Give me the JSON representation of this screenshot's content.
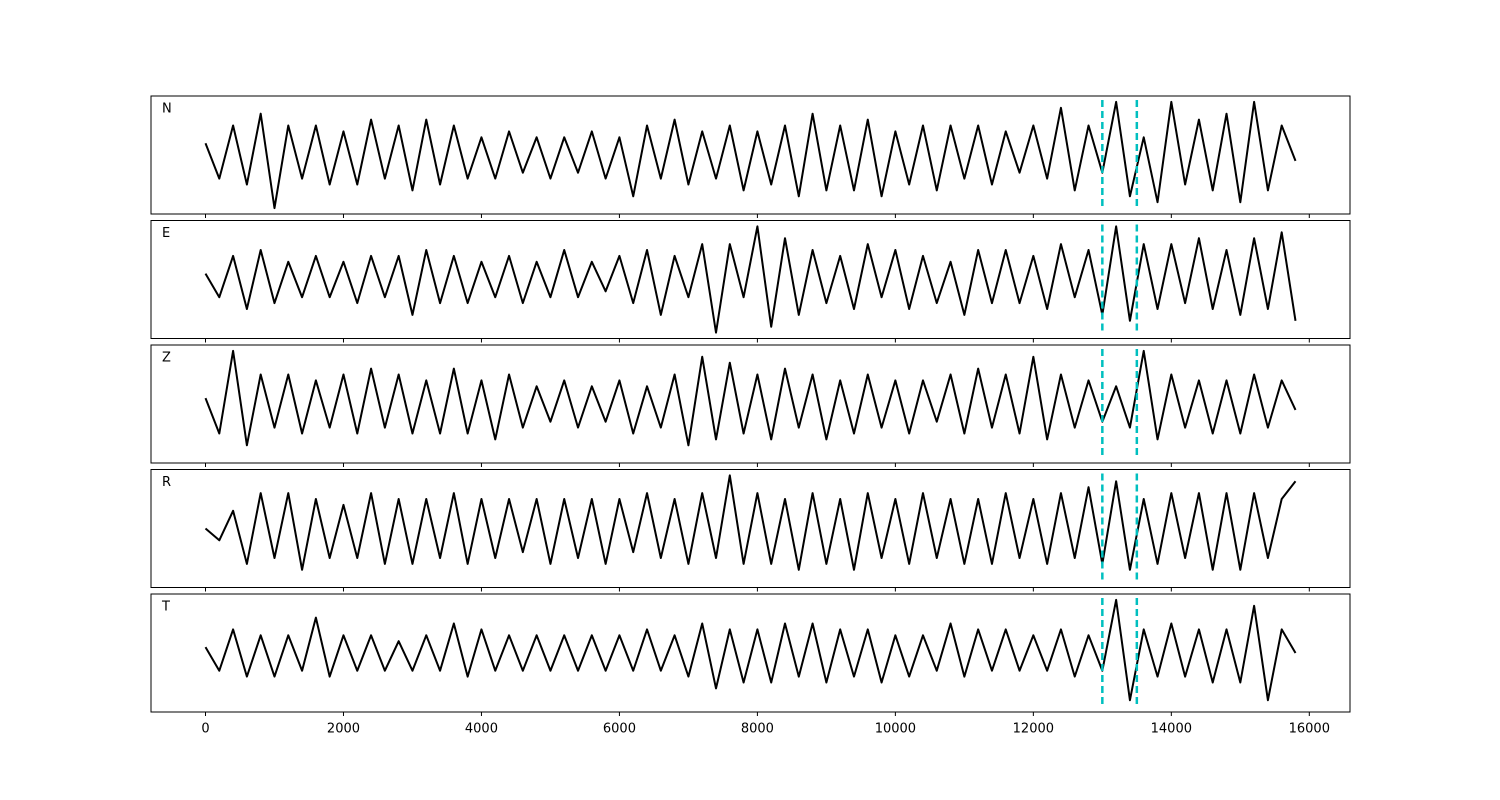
{
  "chart_data": [
    {
      "type": "line",
      "label": "N",
      "xlim": [
        -790,
        16590
      ],
      "ylim": [
        -1,
        1
      ],
      "xticks": [
        0,
        2000,
        4000,
        6000,
        8000,
        10000,
        12000,
        14000,
        16000
      ],
      "show_xticklabels": false,
      "vlines": [
        13000,
        13500
      ],
      "vline_color": "#00bfbf",
      "x": [
        0,
        200,
        400,
        600,
        800,
        1000,
        1200,
        1400,
        1600,
        1800,
        2000,
        2200,
        2400,
        2600,
        2800,
        3000,
        3200,
        3400,
        3600,
        3800,
        4000,
        4200,
        4400,
        4600,
        4800,
        5000,
        5200,
        5400,
        5600,
        5800,
        6000,
        6200,
        6400,
        6600,
        6800,
        7000,
        7200,
        7400,
        7600,
        7800,
        8000,
        8200,
        8400,
        8600,
        8800,
        9000,
        9200,
        9400,
        9600,
        9800,
        10000,
        10200,
        10400,
        10600,
        10800,
        11000,
        11200,
        11400,
        11600,
        11800,
        12000,
        12200,
        12400,
        12600,
        12800,
        13000,
        13200,
        13400,
        13600,
        13800,
        14000,
        14200,
        14400,
        14600,
        14800,
        15000,
        15200,
        15400,
        15600,
        15800
      ],
      "series": [
        {
          "color": "#000000",
          "values": [
            0.2,
            -0.4,
            0.5,
            -0.5,
            0.7,
            -0.9,
            0.5,
            -0.4,
            0.5,
            -0.5,
            0.4,
            -0.5,
            0.6,
            -0.4,
            0.5,
            -0.6,
            0.6,
            -0.5,
            0.5,
            -0.4,
            0.3,
            -0.4,
            0.4,
            -0.3,
            0.3,
            -0.4,
            0.3,
            -0.3,
            0.4,
            -0.4,
            0.3,
            -0.7,
            0.5,
            -0.4,
            0.6,
            -0.5,
            0.4,
            -0.4,
            0.5,
            -0.6,
            0.4,
            -0.5,
            0.5,
            -0.7,
            0.7,
            -0.6,
            0.5,
            -0.6,
            0.6,
            -0.7,
            0.4,
            -0.5,
            0.5,
            -0.6,
            0.5,
            -0.4,
            0.5,
            -0.5,
            0.4,
            -0.3,
            0.5,
            -0.4,
            0.8,
            -0.6,
            0.5,
            -0.3,
            0.9,
            -0.7,
            0.3,
            -0.8,
            0.9,
            -0.5,
            0.6,
            -0.6,
            0.7,
            -0.8,
            0.9,
            -0.6,
            0.5,
            -0.1
          ]
        }
      ]
    },
    {
      "type": "line",
      "label": "E",
      "xlim": [
        -790,
        16590
      ],
      "ylim": [
        -1,
        1
      ],
      "xticks": [
        0,
        2000,
        4000,
        6000,
        8000,
        10000,
        12000,
        14000,
        16000
      ],
      "show_xticklabels": false,
      "vlines": [
        13000,
        13500
      ],
      "vline_color": "#00bfbf",
      "x": [
        0,
        200,
        400,
        600,
        800,
        1000,
        1200,
        1400,
        1600,
        1800,
        2000,
        2200,
        2400,
        2600,
        2800,
        3000,
        3200,
        3400,
        3600,
        3800,
        4000,
        4200,
        4400,
        4600,
        4800,
        5000,
        5200,
        5400,
        5600,
        5800,
        6000,
        6200,
        6400,
        6600,
        6800,
        7000,
        7200,
        7400,
        7600,
        7800,
        8000,
        8200,
        8400,
        8600,
        8800,
        9000,
        9200,
        9400,
        9600,
        9800,
        10000,
        10200,
        10400,
        10600,
        10800,
        11000,
        11200,
        11400,
        11600,
        11800,
        12000,
        12200,
        12400,
        12600,
        12800,
        13000,
        13200,
        13400,
        13600,
        13800,
        14000,
        14200,
        14400,
        14600,
        14800,
        15000,
        15200,
        15400,
        15600,
        15800
      ],
      "series": [
        {
          "color": "#000000",
          "values": [
            0.1,
            -0.3,
            0.4,
            -0.5,
            0.5,
            -0.4,
            0.3,
            -0.3,
            0.4,
            -0.3,
            0.3,
            -0.4,
            0.4,
            -0.3,
            0.4,
            -0.6,
            0.5,
            -0.4,
            0.4,
            -0.4,
            0.3,
            -0.3,
            0.4,
            -0.4,
            0.3,
            -0.3,
            0.5,
            -0.3,
            0.3,
            -0.2,
            0.4,
            -0.4,
            0.5,
            -0.6,
            0.4,
            -0.3,
            0.6,
            -0.9,
            0.6,
            -0.3,
            0.9,
            -0.8,
            0.7,
            -0.6,
            0.5,
            -0.4,
            0.4,
            -0.5,
            0.6,
            -0.3,
            0.5,
            -0.5,
            0.4,
            -0.4,
            0.3,
            -0.6,
            0.5,
            -0.4,
            0.5,
            -0.4,
            0.4,
            -0.5,
            0.6,
            -0.3,
            0.5,
            -0.6,
            0.9,
            -0.7,
            0.6,
            -0.5,
            0.6,
            -0.4,
            0.7,
            -0.5,
            0.5,
            -0.6,
            0.7,
            -0.5,
            0.8,
            -0.7
          ]
        }
      ]
    },
    {
      "type": "line",
      "label": "Z",
      "xlim": [
        -790,
        16590
      ],
      "ylim": [
        -1,
        1
      ],
      "xticks": [
        0,
        2000,
        4000,
        6000,
        8000,
        10000,
        12000,
        14000,
        16000
      ],
      "show_xticklabels": false,
      "vlines": [
        13000,
        13500
      ],
      "vline_color": "#00bfbf",
      "x": [
        0,
        200,
        400,
        600,
        800,
        1000,
        1200,
        1400,
        1600,
        1800,
        2000,
        2200,
        2400,
        2600,
        2800,
        3000,
        3200,
        3400,
        3600,
        3800,
        4000,
        4200,
        4400,
        4600,
        4800,
        5000,
        5200,
        5400,
        5600,
        5800,
        6000,
        6200,
        6400,
        6600,
        6800,
        7000,
        7200,
        7400,
        7600,
        7800,
        8000,
        8200,
        8400,
        8600,
        8800,
        9000,
        9200,
        9400,
        9600,
        9800,
        10000,
        10200,
        10400,
        10600,
        10800,
        11000,
        11200,
        11400,
        11600,
        11800,
        12000,
        12200,
        12400,
        12600,
        12800,
        13000,
        13200,
        13400,
        13600,
        13800,
        14000,
        14200,
        14400,
        14600,
        14800,
        15000,
        15200,
        15400,
        15600,
        15800
      ],
      "series": [
        {
          "color": "#000000",
          "values": [
            0.1,
            -0.5,
            0.9,
            -0.7,
            0.5,
            -0.4,
            0.5,
            -0.5,
            0.4,
            -0.4,
            0.5,
            -0.5,
            0.6,
            -0.4,
            0.5,
            -0.5,
            0.4,
            -0.5,
            0.6,
            -0.5,
            0.4,
            -0.6,
            0.5,
            -0.4,
            0.3,
            -0.3,
            0.4,
            -0.4,
            0.3,
            -0.3,
            0.4,
            -0.5,
            0.3,
            -0.4,
            0.5,
            -0.7,
            0.8,
            -0.6,
            0.7,
            -0.5,
            0.5,
            -0.6,
            0.6,
            -0.4,
            0.5,
            -0.6,
            0.4,
            -0.5,
            0.5,
            -0.4,
            0.4,
            -0.5,
            0.4,
            -0.3,
            0.5,
            -0.5,
            0.6,
            -0.4,
            0.5,
            -0.5,
            0.8,
            -0.6,
            0.5,
            -0.4,
            0.4,
            -0.3,
            0.3,
            -0.4,
            0.9,
            -0.6,
            0.5,
            -0.4,
            0.4,
            -0.5,
            0.4,
            -0.5,
            0.5,
            -0.4,
            0.4,
            -0.1
          ]
        }
      ]
    },
    {
      "type": "line",
      "label": "R",
      "xlim": [
        -790,
        16590
      ],
      "ylim": [
        -1,
        1
      ],
      "xticks": [
        0,
        2000,
        4000,
        6000,
        8000,
        10000,
        12000,
        14000,
        16000
      ],
      "show_xticklabels": false,
      "vlines": [
        13000,
        13500
      ],
      "vline_color": "#00bfbf",
      "x": [
        0,
        200,
        400,
        600,
        800,
        1000,
        1200,
        1400,
        1600,
        1800,
        2000,
        2200,
        2400,
        2600,
        2800,
        3000,
        3200,
        3400,
        3600,
        3800,
        4000,
        4200,
        4400,
        4600,
        4800,
        5000,
        5200,
        5400,
        5600,
        5800,
        6000,
        6200,
        6400,
        6600,
        6800,
        7000,
        7200,
        7400,
        7600,
        7800,
        8000,
        8200,
        8400,
        8600,
        8800,
        9000,
        9200,
        9400,
        9600,
        9800,
        10000,
        10200,
        10400,
        10600,
        10800,
        11000,
        11200,
        11400,
        11600,
        11800,
        12000,
        12200,
        12400,
        12600,
        12800,
        13000,
        13200,
        13400,
        13600,
        13800,
        14000,
        14200,
        14400,
        14600,
        14800,
        15000,
        15200,
        15400,
        15600,
        15800
      ],
      "series": [
        {
          "color": "#000000",
          "values": [
            0.0,
            -0.2,
            0.3,
            -0.6,
            0.6,
            -0.5,
            0.6,
            -0.7,
            0.5,
            -0.5,
            0.4,
            -0.5,
            0.6,
            -0.6,
            0.5,
            -0.6,
            0.5,
            -0.5,
            0.6,
            -0.6,
            0.5,
            -0.5,
            0.5,
            -0.4,
            0.5,
            -0.6,
            0.5,
            -0.5,
            0.5,
            -0.6,
            0.5,
            -0.4,
            0.6,
            -0.5,
            0.5,
            -0.6,
            0.6,
            -0.5,
            0.9,
            -0.6,
            0.6,
            -0.6,
            0.5,
            -0.7,
            0.6,
            -0.6,
            0.5,
            -0.7,
            0.6,
            -0.5,
            0.5,
            -0.6,
            0.6,
            -0.5,
            0.5,
            -0.6,
            0.5,
            -0.6,
            0.6,
            -0.5,
            0.5,
            -0.6,
            0.6,
            -0.5,
            0.7,
            -0.6,
            0.8,
            -0.7,
            0.5,
            -0.6,
            0.6,
            -0.5,
            0.6,
            -0.7,
            0.6,
            -0.7,
            0.6,
            -0.5,
            0.5,
            0.8
          ]
        }
      ]
    },
    {
      "type": "line",
      "label": "T",
      "xlim": [
        -790,
        16590
      ],
      "ylim": [
        -1,
        1
      ],
      "xticks": [
        0,
        2000,
        4000,
        6000,
        8000,
        10000,
        12000,
        14000,
        16000
      ],
      "show_xticklabels": true,
      "vlines": [
        13000,
        13500
      ],
      "vline_color": "#00bfbf",
      "x": [
        0,
        200,
        400,
        600,
        800,
        1000,
        1200,
        1400,
        1600,
        1800,
        2000,
        2200,
        2400,
        2600,
        2800,
        3000,
        3200,
        3400,
        3600,
        3800,
        4000,
        4200,
        4400,
        4600,
        4800,
        5000,
        5200,
        5400,
        5600,
        5800,
        6000,
        6200,
        6400,
        6600,
        6800,
        7000,
        7200,
        7400,
        7600,
        7800,
        8000,
        8200,
        8400,
        8600,
        8800,
        9000,
        9200,
        9400,
        9600,
        9800,
        10000,
        10200,
        10400,
        10600,
        10800,
        11000,
        11200,
        11400,
        11600,
        11800,
        12000,
        12200,
        12400,
        12600,
        12800,
        13000,
        13200,
        13400,
        13600,
        13800,
        14000,
        14200,
        14400,
        14600,
        14800,
        15000,
        15200,
        15400,
        15600,
        15800
      ],
      "series": [
        {
          "color": "#000000",
          "values": [
            0.1,
            -0.3,
            0.4,
            -0.4,
            0.3,
            -0.4,
            0.3,
            -0.3,
            0.6,
            -0.4,
            0.3,
            -0.3,
            0.3,
            -0.3,
            0.2,
            -0.3,
            0.3,
            -0.3,
            0.5,
            -0.4,
            0.4,
            -0.3,
            0.3,
            -0.3,
            0.3,
            -0.3,
            0.3,
            -0.3,
            0.3,
            -0.3,
            0.3,
            -0.3,
            0.4,
            -0.3,
            0.3,
            -0.4,
            0.5,
            -0.6,
            0.4,
            -0.5,
            0.4,
            -0.5,
            0.5,
            -0.4,
            0.5,
            -0.5,
            0.4,
            -0.4,
            0.4,
            -0.5,
            0.3,
            -0.4,
            0.3,
            -0.3,
            0.5,
            -0.4,
            0.4,
            -0.3,
            0.4,
            -0.3,
            0.3,
            -0.3,
            0.4,
            -0.4,
            0.3,
            -0.3,
            0.9,
            -0.8,
            0.4,
            -0.4,
            0.5,
            -0.4,
            0.4,
            -0.5,
            0.4,
            -0.5,
            0.8,
            -0.8,
            0.4,
            0.0
          ]
        }
      ]
    }
  ]
}
